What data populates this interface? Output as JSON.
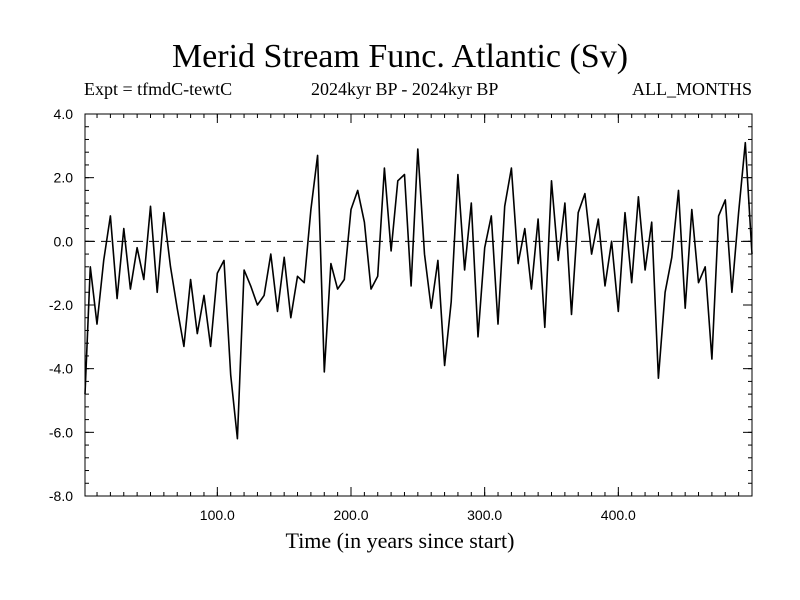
{
  "chart_data": {
    "type": "line",
    "title": "Merid Stream Func. Atlantic (Sv)",
    "experiment_label": "Expt = tfmdC-tewtC",
    "period_label": "2024kyr BP - 2024kyr BP",
    "season_label": "ALL_MONTHS",
    "xlabel": "Time (in years since start)",
    "ylabel": "",
    "xlim": [
      1,
      500
    ],
    "ylim": [
      -8.0,
      4.0
    ],
    "xticks": [
      100,
      200,
      300,
      400
    ],
    "xtick_labels": [
      "100.0",
      "200.0",
      "300.0",
      "400.0"
    ],
    "yticks": [
      4.0,
      2.0,
      0.0,
      -2.0,
      -4.0,
      -6.0,
      -8.0
    ],
    "ytick_labels": [
      "4.0",
      "2.0",
      "0.0",
      "-2.0",
      "-4.0",
      "-6.0",
      "-8.0"
    ],
    "reference_line": 0.0,
    "series": [
      {
        "name": "Merid Stream Func. Atlantic",
        "x": [
          1,
          5,
          10,
          15,
          20,
          25,
          30,
          35,
          40,
          45,
          50,
          55,
          60,
          65,
          70,
          75,
          80,
          85,
          90,
          95,
          100,
          105,
          110,
          115,
          120,
          125,
          130,
          135,
          140,
          145,
          150,
          155,
          160,
          165,
          170,
          175,
          180,
          185,
          190,
          195,
          200,
          205,
          210,
          215,
          220,
          225,
          230,
          235,
          240,
          245,
          250,
          255,
          260,
          265,
          270,
          275,
          280,
          285,
          290,
          295,
          300,
          305,
          310,
          315,
          320,
          325,
          330,
          335,
          340,
          345,
          350,
          355,
          360,
          365,
          370,
          375,
          380,
          385,
          390,
          395,
          400,
          405,
          410,
          415,
          420,
          425,
          430,
          435,
          440,
          445,
          450,
          455,
          460,
          465,
          470,
          475,
          480,
          485,
          490,
          495,
          500
        ],
        "values": [
          -4.8,
          -0.8,
          -2.6,
          -0.6,
          0.8,
          -1.8,
          0.4,
          -1.5,
          -0.2,
          -1.2,
          1.1,
          -1.6,
          0.9,
          -0.8,
          -2.1,
          -3.3,
          -1.2,
          -2.9,
          -1.7,
          -3.3,
          -1.0,
          -0.6,
          -4.2,
          -6.2,
          -0.9,
          -1.4,
          -2.0,
          -1.7,
          -0.4,
          -2.2,
          -0.5,
          -2.4,
          -1.1,
          -1.3,
          1.0,
          2.7,
          -4.1,
          -0.7,
          -1.5,
          -1.2,
          1.0,
          1.6,
          0.6,
          -1.5,
          -1.1,
          2.3,
          -0.3,
          1.9,
          2.1,
          -1.4,
          2.9,
          -0.4,
          -2.1,
          -0.6,
          -3.9,
          -1.9,
          2.1,
          -0.9,
          1.2,
          -3.0,
          -0.2,
          0.8,
          -2.6,
          1.1,
          2.3,
          -0.7,
          0.4,
          -1.5,
          0.7,
          -2.7,
          1.9,
          -0.6,
          1.2,
          -2.3,
          0.9,
          1.5,
          -0.4,
          0.7,
          -1.4,
          0.0,
          -2.2,
          0.9,
          -1.3,
          1.4,
          -0.9,
          0.6,
          -4.3,
          -1.6,
          -0.5,
          1.6,
          -2.1,
          1.0,
          -1.3,
          -0.8,
          -3.7,
          0.8,
          1.3,
          -1.6,
          0.9,
          3.1,
          -0.4
        ]
      }
    ]
  }
}
